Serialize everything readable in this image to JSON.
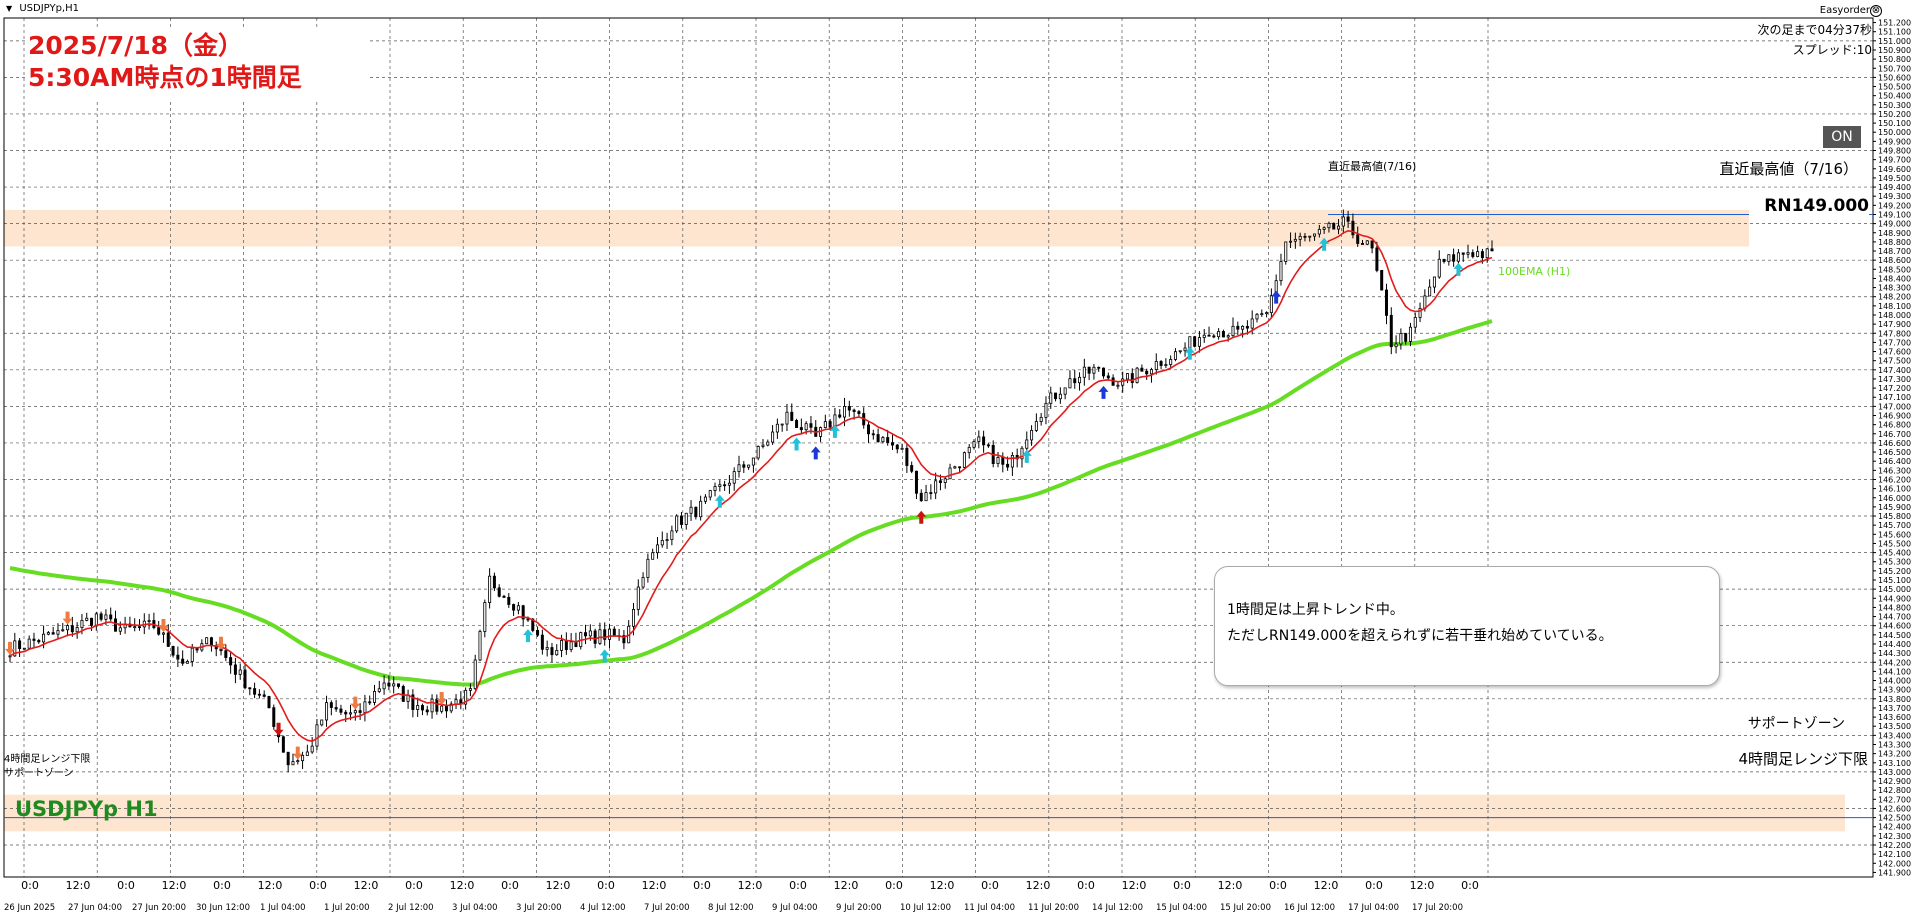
{
  "window": {
    "title": "USDJPYp,H1",
    "menu_glyph": "▼"
  },
  "header_box": {
    "date_line": "2025/7/18（金）",
    "desc_line": "5:30AM時点の1時間足"
  },
  "ea_panel": {
    "name": "Easyorder",
    "close_glyph": "⊗",
    "next_bar": "次の足まで04分37秒",
    "spread": "スプレッド:10",
    "on_button": "ON"
  },
  "annotations": {
    "recent_high_small": "直近最高値(7/16)",
    "recent_high_big": "直近最高値（7/16）",
    "round_number": "RN149.000",
    "ema_label": "100EMA (H1)",
    "support_zone_right": "サポートゾーン",
    "h4_range_low_right": "4時間足レンジ下限",
    "h4_range_low_left": "4時間足レンジ下限",
    "support_zone_left": "サポートゾーン",
    "symbol_big": "USDJPYp H1"
  },
  "note_box": {
    "line1": "1時間足は上昇トレンド中。",
    "line2": "ただしRN149.000を超えられずに若干垂れ始めていている。"
  },
  "colors": {
    "title_red": "#e01818",
    "zone_fill": "#fde5cf",
    "ema100": "#66dd22",
    "ema_fast": "#e21b1b",
    "candle": "#000000",
    "grid": "#555555",
    "hline": "#1d5fd0",
    "symbol_green": "#1f8a1f"
  },
  "chart_data": {
    "type": "candlestick",
    "symbol": "USDJPYp",
    "timeframe": "H1",
    "y_ticks": [
      151.2,
      151.1,
      151.0,
      150.9,
      150.8,
      150.7,
      150.6,
      150.5,
      150.4,
      150.3,
      150.2,
      150.1,
      150.0,
      149.9,
      149.8,
      149.7,
      149.6,
      149.5,
      149.4,
      149.3,
      149.2,
      149.1,
      149.0,
      148.9,
      148.8,
      148.7,
      148.6,
      148.5,
      148.4,
      148.3,
      148.2,
      148.1,
      148.0,
      147.9,
      147.8,
      147.7,
      147.6,
      147.5,
      147.4,
      147.3,
      147.2,
      147.1,
      147.0,
      146.9,
      146.8,
      146.7,
      146.6,
      146.5,
      146.4,
      146.3,
      146.2,
      146.1,
      146.0,
      145.9,
      145.8,
      145.7,
      145.6,
      145.5,
      145.4,
      145.3,
      145.2,
      145.1,
      145.0,
      144.9,
      144.8,
      144.7,
      144.6,
      144.5,
      144.4,
      144.3,
      144.2,
      144.1,
      144.0,
      143.9,
      143.8,
      143.7,
      143.6,
      143.5,
      143.4,
      143.3,
      143.2,
      143.1,
      143.0,
      142.9,
      142.8,
      142.7,
      142.6,
      142.5,
      142.4,
      142.3,
      142.2,
      142.1,
      142.0,
      141.9
    ],
    "ylim": [
      141.85,
      151.25
    ],
    "x_hour_labels": [
      "0:0",
      "12:0",
      "0:0",
      "12:0",
      "0:0",
      "12:0",
      "0:0",
      "12:0",
      "0:0",
      "12:0",
      "0:0",
      "12:0",
      "0:0",
      "12:0",
      "0:0",
      "12:0",
      "0:0",
      "12:0",
      "0:0",
      "12:0",
      "0:0",
      "12:0",
      "0:0",
      "12:0",
      "0:0",
      "12:0",
      "0:0",
      "12:0",
      "0:0",
      "12:0",
      "0:0"
    ],
    "x_date_labels": [
      "26 Jun 2025",
      "27 Jun 04:00",
      "27 Jun 20:00",
      "30 Jun 12:00",
      "1 Jul 04:00",
      "1 Jul 20:00",
      "2 Jul 12:00",
      "3 Jul 04:00",
      "3 Jul 20:00",
      "4 Jul 12:00",
      "7 Jul 20:00",
      "8 Jul 12:00",
      "9 Jul 04:00",
      "9 Jul 20:00",
      "10 Jul 12:00",
      "11 Jul 04:00",
      "11 Jul 20:00",
      "14 Jul 12:00",
      "15 Jul 04:00",
      "15 Jul 20:00",
      "16 Jul 12:00",
      "17 Jul 04:00",
      "17 Jul 20:00"
    ],
    "close_path": [
      {
        "i": 0,
        "close": 144.35
      },
      {
        "i": 6,
        "close": 144.45
      },
      {
        "i": 12,
        "close": 144.55
      },
      {
        "i": 18,
        "close": 144.7
      },
      {
        "i": 24,
        "close": 144.55
      },
      {
        "i": 30,
        "close": 144.6
      },
      {
        "i": 36,
        "close": 144.2
      },
      {
        "i": 42,
        "close": 144.45
      },
      {
        "i": 48,
        "close": 144.05
      },
      {
        "i": 54,
        "close": 143.7
      },
      {
        "i": 58,
        "close": 143.1
      },
      {
        "i": 62,
        "close": 143.2
      },
      {
        "i": 66,
        "close": 143.7
      },
      {
        "i": 72,
        "close": 143.6
      },
      {
        "i": 78,
        "close": 144.0
      },
      {
        "i": 84,
        "close": 143.75
      },
      {
        "i": 90,
        "close": 143.7
      },
      {
        "i": 96,
        "close": 143.85
      },
      {
        "i": 100,
        "close": 145.1
      },
      {
        "i": 106,
        "close": 144.8
      },
      {
        "i": 112,
        "close": 144.3
      },
      {
        "i": 118,
        "close": 144.45
      },
      {
        "i": 124,
        "close": 144.5
      },
      {
        "i": 128,
        "close": 144.45
      },
      {
        "i": 132,
        "close": 145.2
      },
      {
        "i": 138,
        "close": 145.7
      },
      {
        "i": 144,
        "close": 145.9
      },
      {
        "i": 150,
        "close": 146.2
      },
      {
        "i": 156,
        "close": 146.5
      },
      {
        "i": 162,
        "close": 146.9
      },
      {
        "i": 168,
        "close": 146.65
      },
      {
        "i": 174,
        "close": 147.0
      },
      {
        "i": 180,
        "close": 146.7
      },
      {
        "i": 186,
        "close": 146.5
      },
      {
        "i": 190,
        "close": 146.0
      },
      {
        "i": 196,
        "close": 146.3
      },
      {
        "i": 202,
        "close": 146.6
      },
      {
        "i": 208,
        "close": 146.3
      },
      {
        "i": 214,
        "close": 146.9
      },
      {
        "i": 220,
        "close": 147.25
      },
      {
        "i": 226,
        "close": 147.4
      },
      {
        "i": 232,
        "close": 147.25
      },
      {
        "i": 238,
        "close": 147.45
      },
      {
        "i": 244,
        "close": 147.6
      },
      {
        "i": 250,
        "close": 147.85
      },
      {
        "i": 256,
        "close": 147.8
      },
      {
        "i": 262,
        "close": 148.0
      },
      {
        "i": 266,
        "close": 148.8
      },
      {
        "i": 272,
        "close": 148.85
      },
      {
        "i": 278,
        "close": 149.0
      },
      {
        "i": 284,
        "close": 148.7
      },
      {
        "i": 288,
        "close": 147.7
      },
      {
        "i": 292,
        "close": 147.8
      },
      {
        "i": 298,
        "close": 148.55
      },
      {
        "i": 304,
        "close": 148.7
      },
      {
        "i": 309,
        "close": 148.65
      }
    ],
    "levels": {
      "recent_high": 149.1,
      "round_number": 149.0,
      "h4_range_low": 142.5
    },
    "zones": [
      {
        "name": "resistance",
        "low": 148.75,
        "high": 149.15
      },
      {
        "name": "support",
        "low": 142.35,
        "high": 142.75
      }
    ]
  }
}
